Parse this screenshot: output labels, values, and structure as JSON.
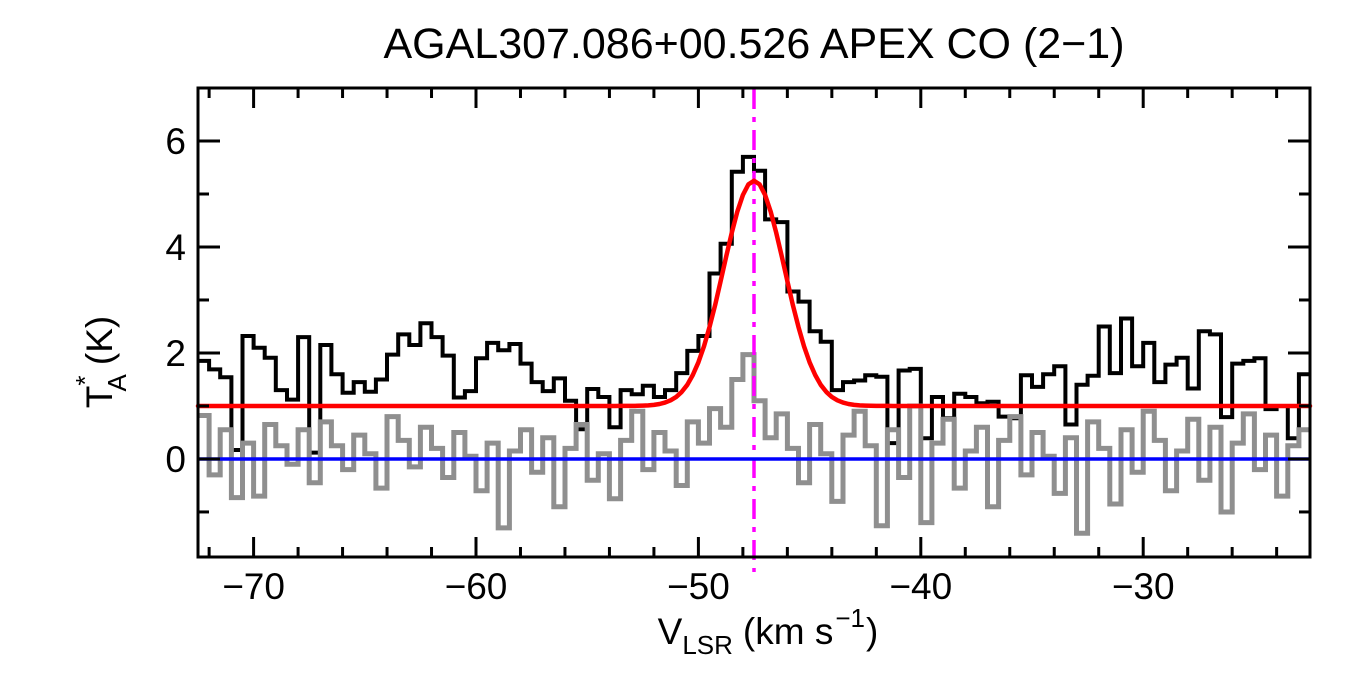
{
  "title": "AGAL307.086+00.526  APEX CO (2−1)",
  "labels": {
    "x": {
      "main": "V",
      "sub": "LSR",
      "mid": "(km s",
      "sup": "−1",
      "close": ")"
    },
    "y": {
      "main": "T",
      "sup": "*",
      "sub": "A",
      "rest": "(K)"
    }
  },
  "colors": {
    "background": "#ffffff",
    "frame": "#000000",
    "observed": "#000000",
    "residual": "#8f8f8f",
    "fit": "#ff0000",
    "zero_line": "#0000ff",
    "marker_line": "#ff00ff"
  },
  "axis": {
    "x_major_ticks": [
      -70,
      -60,
      -50,
      -40,
      -30
    ],
    "x_major_tick_labels": [
      "−70",
      "−60",
      "−50",
      "−40",
      "−30"
    ],
    "x_minor_step": 2,
    "y_major_ticks": [
      0,
      2,
      4,
      6
    ],
    "y_major_tick_labels": [
      "0",
      "2",
      "4",
      "6"
    ],
    "y_minor_ticks": [
      -1,
      1,
      3,
      5
    ]
  },
  "chart_data": {
    "type": "line",
    "title": "AGAL307.086+00.526  APEX CO (2−1)",
    "xlabel": "V_LSR (km s^-1)",
    "ylabel": "T_A^* (K)",
    "xlim": [
      -72.5,
      -22.5
    ],
    "ylim": [
      -1.85,
      7.0
    ],
    "grid": false,
    "legend": false,
    "v_start": -72.5,
    "channel_width_kms": 0.5,
    "series": [
      {
        "name": "observed-spectrum-offset",
        "style": "histogram",
        "color_key": "observed",
        "offset_note": "spectrum plotted on +1 K baseline",
        "values": [
          1.85,
          1.69,
          1.54,
          0.17,
          2.32,
          2.1,
          1.91,
          1.3,
          1.12,
          2.3,
          0.12,
          2.15,
          1.6,
          1.25,
          1.45,
          1.27,
          1.5,
          1.97,
          2.35,
          2.15,
          2.56,
          2.3,
          1.95,
          1.16,
          1.28,
          1.9,
          2.19,
          2.05,
          2.17,
          1.8,
          1.45,
          1.28,
          1.52,
          1.1,
          0.56,
          1.32,
          1.17,
          0.6,
          1.3,
          1.22,
          1.38,
          1.17,
          1.3,
          1.62,
          2.04,
          2.32,
          3.5,
          4.06,
          5.42,
          5.7,
          5.44,
          4.52,
          4.47,
          3.16,
          2.97,
          2.41,
          2.21,
          1.3,
          1.45,
          1.48,
          1.58,
          1.55,
          0.3,
          1.67,
          1.7,
          0.39,
          1.17,
          0.77,
          1.23,
          1.17,
          1.05,
          1.08,
          0.8,
          0.77,
          1.58,
          1.36,
          1.6,
          1.75,
          0.65,
          1.4,
          1.57,
          2.5,
          1.62,
          2.65,
          1.75,
          2.19,
          1.45,
          1.78,
          1.91,
          1.33,
          2.41,
          2.35,
          0.79,
          1.8,
          1.85,
          1.9,
          0.94,
          1.0,
          0.39,
          1.6
        ]
      },
      {
        "name": "residual-spectrum",
        "style": "histogram",
        "color_key": "residual",
        "values": [
          0.82,
          -0.3,
          0.55,
          -0.73,
          0.3,
          -0.7,
          0.65,
          0.25,
          -0.1,
          0.55,
          -0.45,
          0.7,
          0.25,
          -0.2,
          0.45,
          0.1,
          -0.55,
          0.8,
          0.35,
          -0.15,
          0.6,
          0.2,
          -0.35,
          0.5,
          0.05,
          -0.6,
          0.3,
          -1.3,
          0.15,
          0.55,
          -0.25,
          0.4,
          -0.9,
          0.2,
          0.65,
          -0.4,
          0.1,
          -0.75,
          0.35,
          0.9,
          -0.2,
          0.5,
          0.15,
          -0.5,
          0.7,
          0.3,
          0.95,
          0.6,
          1.5,
          1.97,
          1.1,
          0.4,
          0.85,
          0.2,
          -0.45,
          0.65,
          0.1,
          -0.8,
          0.45,
          0.9,
          0.25,
          -1.26,
          0.55,
          -0.35,
          1.0,
          -1.2,
          0.3,
          0.75,
          -0.55,
          0.15,
          0.6,
          -0.9,
          0.35,
          0.8,
          -0.3,
          0.5,
          0.05,
          -0.65,
          0.4,
          -1.4,
          0.7,
          0.2,
          -0.85,
          0.55,
          -0.25,
          0.9,
          0.35,
          -0.6,
          0.15,
          0.75,
          -0.4,
          0.6,
          -1.0,
          0.3,
          0.85,
          -0.2,
          0.45,
          -0.7,
          0.25,
          0.55
        ]
      },
      {
        "name": "gaussian-fit",
        "style": "curve",
        "color_key": "fit",
        "baseline": 1.0,
        "amplitude": 4.25,
        "center": -47.5,
        "fwhm": 3.25
      },
      {
        "name": "zero-baseline",
        "style": "hline",
        "color_key": "zero_line",
        "y": 0.0
      },
      {
        "name": "velocity-marker",
        "style": "vline",
        "color_key": "marker_line",
        "x": -47.5,
        "linestyle": "dash-dot"
      }
    ]
  }
}
